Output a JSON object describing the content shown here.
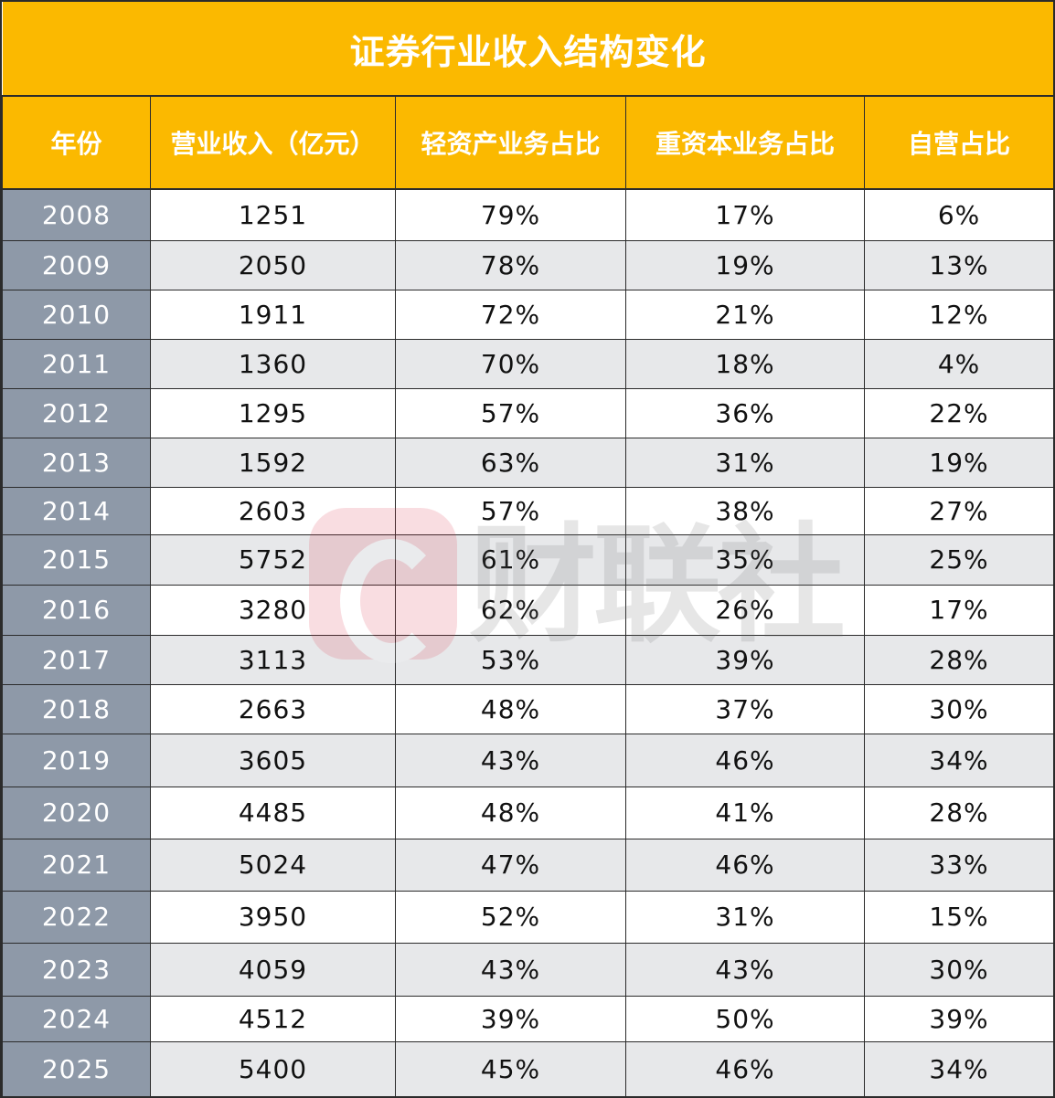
{
  "chart_data": {
    "type": "table",
    "title": "证券行业收入结构变化",
    "columns": [
      "年份",
      "营业收入（亿元）",
      "轻资产业务占比",
      "重资本业务占比",
      "自营占比"
    ],
    "rows": [
      [
        "2008",
        "1251",
        "79%",
        "17%",
        "6%"
      ],
      [
        "2009",
        "2050",
        "78%",
        "19%",
        "13%"
      ],
      [
        "2010",
        "1911",
        "72%",
        "21%",
        "12%"
      ],
      [
        "2011",
        "1360",
        "70%",
        "18%",
        "4%"
      ],
      [
        "2012",
        "1295",
        "57%",
        "36%",
        "22%"
      ],
      [
        "2013",
        "1592",
        "63%",
        "31%",
        "19%"
      ],
      [
        "2014",
        "2603",
        "57%",
        "38%",
        "27%"
      ],
      [
        "2015",
        "5752",
        "61%",
        "35%",
        "25%"
      ],
      [
        "2016",
        "3280",
        "62%",
        "26%",
        "17%"
      ],
      [
        "2017",
        "3113",
        "53%",
        "39%",
        "28%"
      ],
      [
        "2018",
        "2663",
        "48%",
        "37%",
        "30%"
      ],
      [
        "2019",
        "3605",
        "43%",
        "46%",
        "34%"
      ],
      [
        "2020",
        "4485",
        "48%",
        "41%",
        "28%"
      ],
      [
        "2021",
        "5024",
        "47%",
        "46%",
        "33%"
      ],
      [
        "2022",
        "3950",
        "52%",
        "31%",
        "15%"
      ],
      [
        "2023",
        "4059",
        "43%",
        "43%",
        "30%"
      ],
      [
        "2024",
        "4512",
        "39%",
        "50%",
        "39%"
      ],
      [
        "2025",
        "5400",
        "45%",
        "46%",
        "34%"
      ]
    ]
  },
  "watermark": {
    "text": "财联社"
  },
  "colors": {
    "header_bg": "#fbb900",
    "header_text": "#ffffff",
    "year_col_bg": "#8e99a8",
    "row_alt_bg": "#e7e8ea",
    "border": "#2b2b2b",
    "watermark_logo": "#e0334a"
  }
}
